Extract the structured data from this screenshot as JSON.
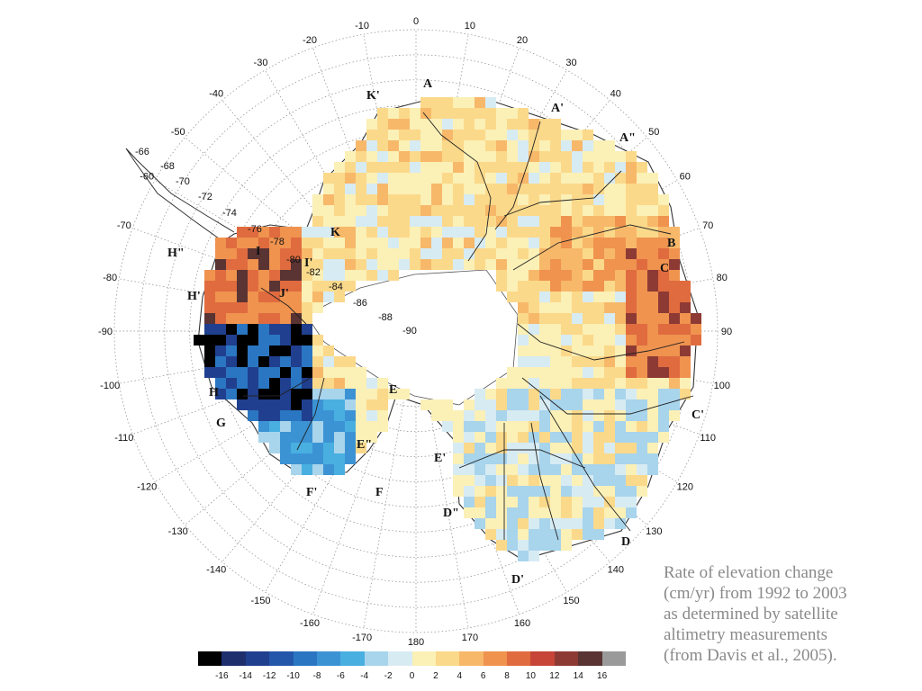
{
  "caption": [
    "Rate of elevation change",
    "(cm/yr) from 1992 to 2003",
    "as determined by satellite",
    "altimetry measurements",
    "(from Davis et al., 2005)."
  ],
  "colorbar": {
    "colors": [
      "#000000",
      "#1f2f6e",
      "#203f8e",
      "#2457aa",
      "#2b76c2",
      "#3c93d4",
      "#49afe0",
      "#a8d4ec",
      "#d7ebf3",
      "#fbf0b6",
      "#fbd98a",
      "#f7b86a",
      "#ef934f",
      "#e06b3f",
      "#c64538",
      "#8e3a34",
      "#5a3333",
      "#9a9a9a"
    ],
    "ticks": [
      "-16",
      "-14",
      "-12",
      "-10",
      "-8",
      "-6",
      "-4",
      "-2",
      "0",
      "2",
      "4",
      "6",
      "8",
      "10",
      "12",
      "14",
      "16"
    ]
  },
  "longitude_labels": [
    "0",
    "10",
    "20",
    "30",
    "40",
    "50",
    "60",
    "70",
    "80",
    "90",
    "100",
    "110",
    "120",
    "130",
    "140",
    "150",
    "160",
    "170",
    "180",
    "-170",
    "-160",
    "-150",
    "-140",
    "-130",
    "-120",
    "-110",
    "-100",
    "-90",
    "-80",
    "-70",
    "-60",
    "-50",
    "-40",
    "-30",
    "-20",
    "-10"
  ],
  "latitude_labels": [
    "-66",
    "-68",
    "-70",
    "-72",
    "-74",
    "-76",
    "-78",
    "-80",
    "-82",
    "-84",
    "-86",
    "-88",
    "-90"
  ],
  "basin_labels": [
    "A",
    "A'",
    "A\"",
    "B",
    "C",
    "C'",
    "D",
    "D'",
    "D\"",
    "E",
    "E'",
    "E\"",
    "F",
    "F'",
    "G",
    "H",
    "H'",
    "H\"",
    "I",
    "I'",
    "J'",
    "K",
    "K'"
  ]
}
